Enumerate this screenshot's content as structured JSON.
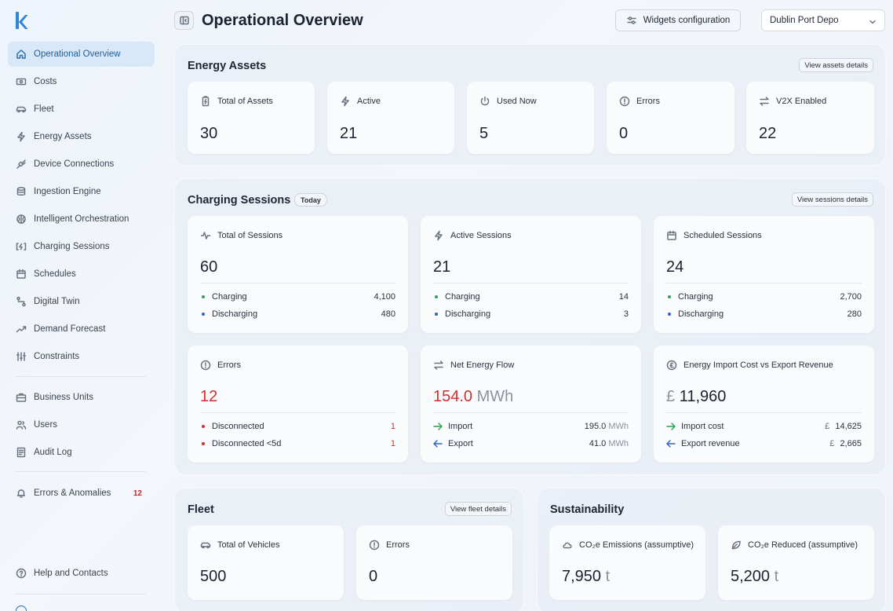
{
  "colors": {
    "accent": "#2c6fae",
    "active_bg": "#d9e8f8",
    "error": "#d32f2f",
    "green_dot": "#2e9e55",
    "blue_dot": "#2f62c9"
  },
  "app": {
    "logo_icon": "k-logo-icon"
  },
  "sidebar": {
    "items": [
      {
        "label": "Operational Overview",
        "icon": "home-icon"
      },
      {
        "label": "Costs",
        "icon": "money-icon"
      },
      {
        "label": "Fleet",
        "icon": "car-icon"
      },
      {
        "label": "Energy Assets",
        "icon": "bolt-icon"
      },
      {
        "label": "Device Connections",
        "icon": "plug-icon"
      },
      {
        "label": "Ingestion Engine",
        "icon": "database-icon"
      },
      {
        "label": "Intelligent Orchestration",
        "icon": "brain-icon"
      },
      {
        "label": "Charging Sessions",
        "icon": "charging-icon"
      },
      {
        "label": "Schedules",
        "icon": "calendar-icon"
      },
      {
        "label": "Digital Twin",
        "icon": "route-icon"
      },
      {
        "label": "Demand Forecast",
        "icon": "trend-icon"
      },
      {
        "label": "Constraints",
        "icon": "sliders-icon"
      },
      {
        "label": "Business Units",
        "icon": "briefcase-icon"
      },
      {
        "label": "Users",
        "icon": "users-icon"
      },
      {
        "label": "Audit Log",
        "icon": "log-icon"
      },
      {
        "label": "Errors & Anomalies",
        "icon": "bell-icon",
        "badge": "12"
      },
      {
        "label": "Help and Contacts",
        "icon": "help-icon"
      }
    ]
  },
  "header": {
    "title": "Operational Overview",
    "widgets_label": "Widgets configuration",
    "depot_selected": "Dublin Port Depo"
  },
  "energy_assets": {
    "title": "Energy Assets",
    "details_label": "View assets details",
    "cards": [
      {
        "label": "Total of Assets",
        "value": "30",
        "icon": "battery-icon"
      },
      {
        "label": "Active",
        "value": "21",
        "icon": "bolt-icon"
      },
      {
        "label": "Used Now",
        "value": "5",
        "icon": "power-icon"
      },
      {
        "label": "Errors",
        "value": "0",
        "icon": "alert-circle-icon"
      },
      {
        "label": "V2X Enabled",
        "value": "22",
        "icon": "swap-icon"
      }
    ]
  },
  "charging_sessions": {
    "title": "Charging Sessions",
    "chip": "Today",
    "details_label": "View sessions details",
    "total": {
      "label": "Total of Sessions",
      "value": "60",
      "rows": [
        {
          "label": "Charging",
          "value": "4,100"
        },
        {
          "label": "Discharging",
          "value": "480"
        }
      ]
    },
    "active": {
      "label": "Active Sessions",
      "value": "21",
      "rows": [
        {
          "label": "Charging",
          "value": "14"
        },
        {
          "label": "Discharging",
          "value": "3"
        }
      ]
    },
    "scheduled": {
      "label": "Scheduled Sessions",
      "value": "24",
      "rows": [
        {
          "label": "Charging",
          "value": "2,700"
        },
        {
          "label": "Discharging",
          "value": "280"
        }
      ]
    },
    "errors": {
      "label": "Errors",
      "value": "12",
      "rows": [
        {
          "label": "Disconnected",
          "value": "1"
        },
        {
          "label": "Disconnected <5d",
          "value": "1"
        }
      ]
    },
    "net_flow": {
      "label": "Net Energy Flow",
      "value": "154.0",
      "unit": "MWh",
      "rows": [
        {
          "label": "Import",
          "value": "195.0",
          "unit": "MWh"
        },
        {
          "label": "Export",
          "value": "41.0",
          "unit": "MWh"
        }
      ]
    },
    "cost": {
      "label": "Energy Import Cost vs Export Revenue",
      "currency": "£",
      "value": "11,960",
      "rows": [
        {
          "label": "Import cost",
          "currency": "£",
          "value": "14,625"
        },
        {
          "label": "Export revenue",
          "currency": "£",
          "value": "2,665"
        }
      ]
    }
  },
  "fleet": {
    "title": "Fleet",
    "details_label": "View fleet details",
    "cards": [
      {
        "label": "Total of Vehicles",
        "value": "500"
      },
      {
        "label": "Errors",
        "value": "0"
      }
    ]
  },
  "sustainability": {
    "title": "Sustainability",
    "cards": [
      {
        "label": "CO₂e Emissions (assumptive)",
        "value": "7,950",
        "unit": "t"
      },
      {
        "label": "CO₂e Reduced (assumptive)",
        "value": "5,200",
        "unit": "t"
      }
    ]
  }
}
